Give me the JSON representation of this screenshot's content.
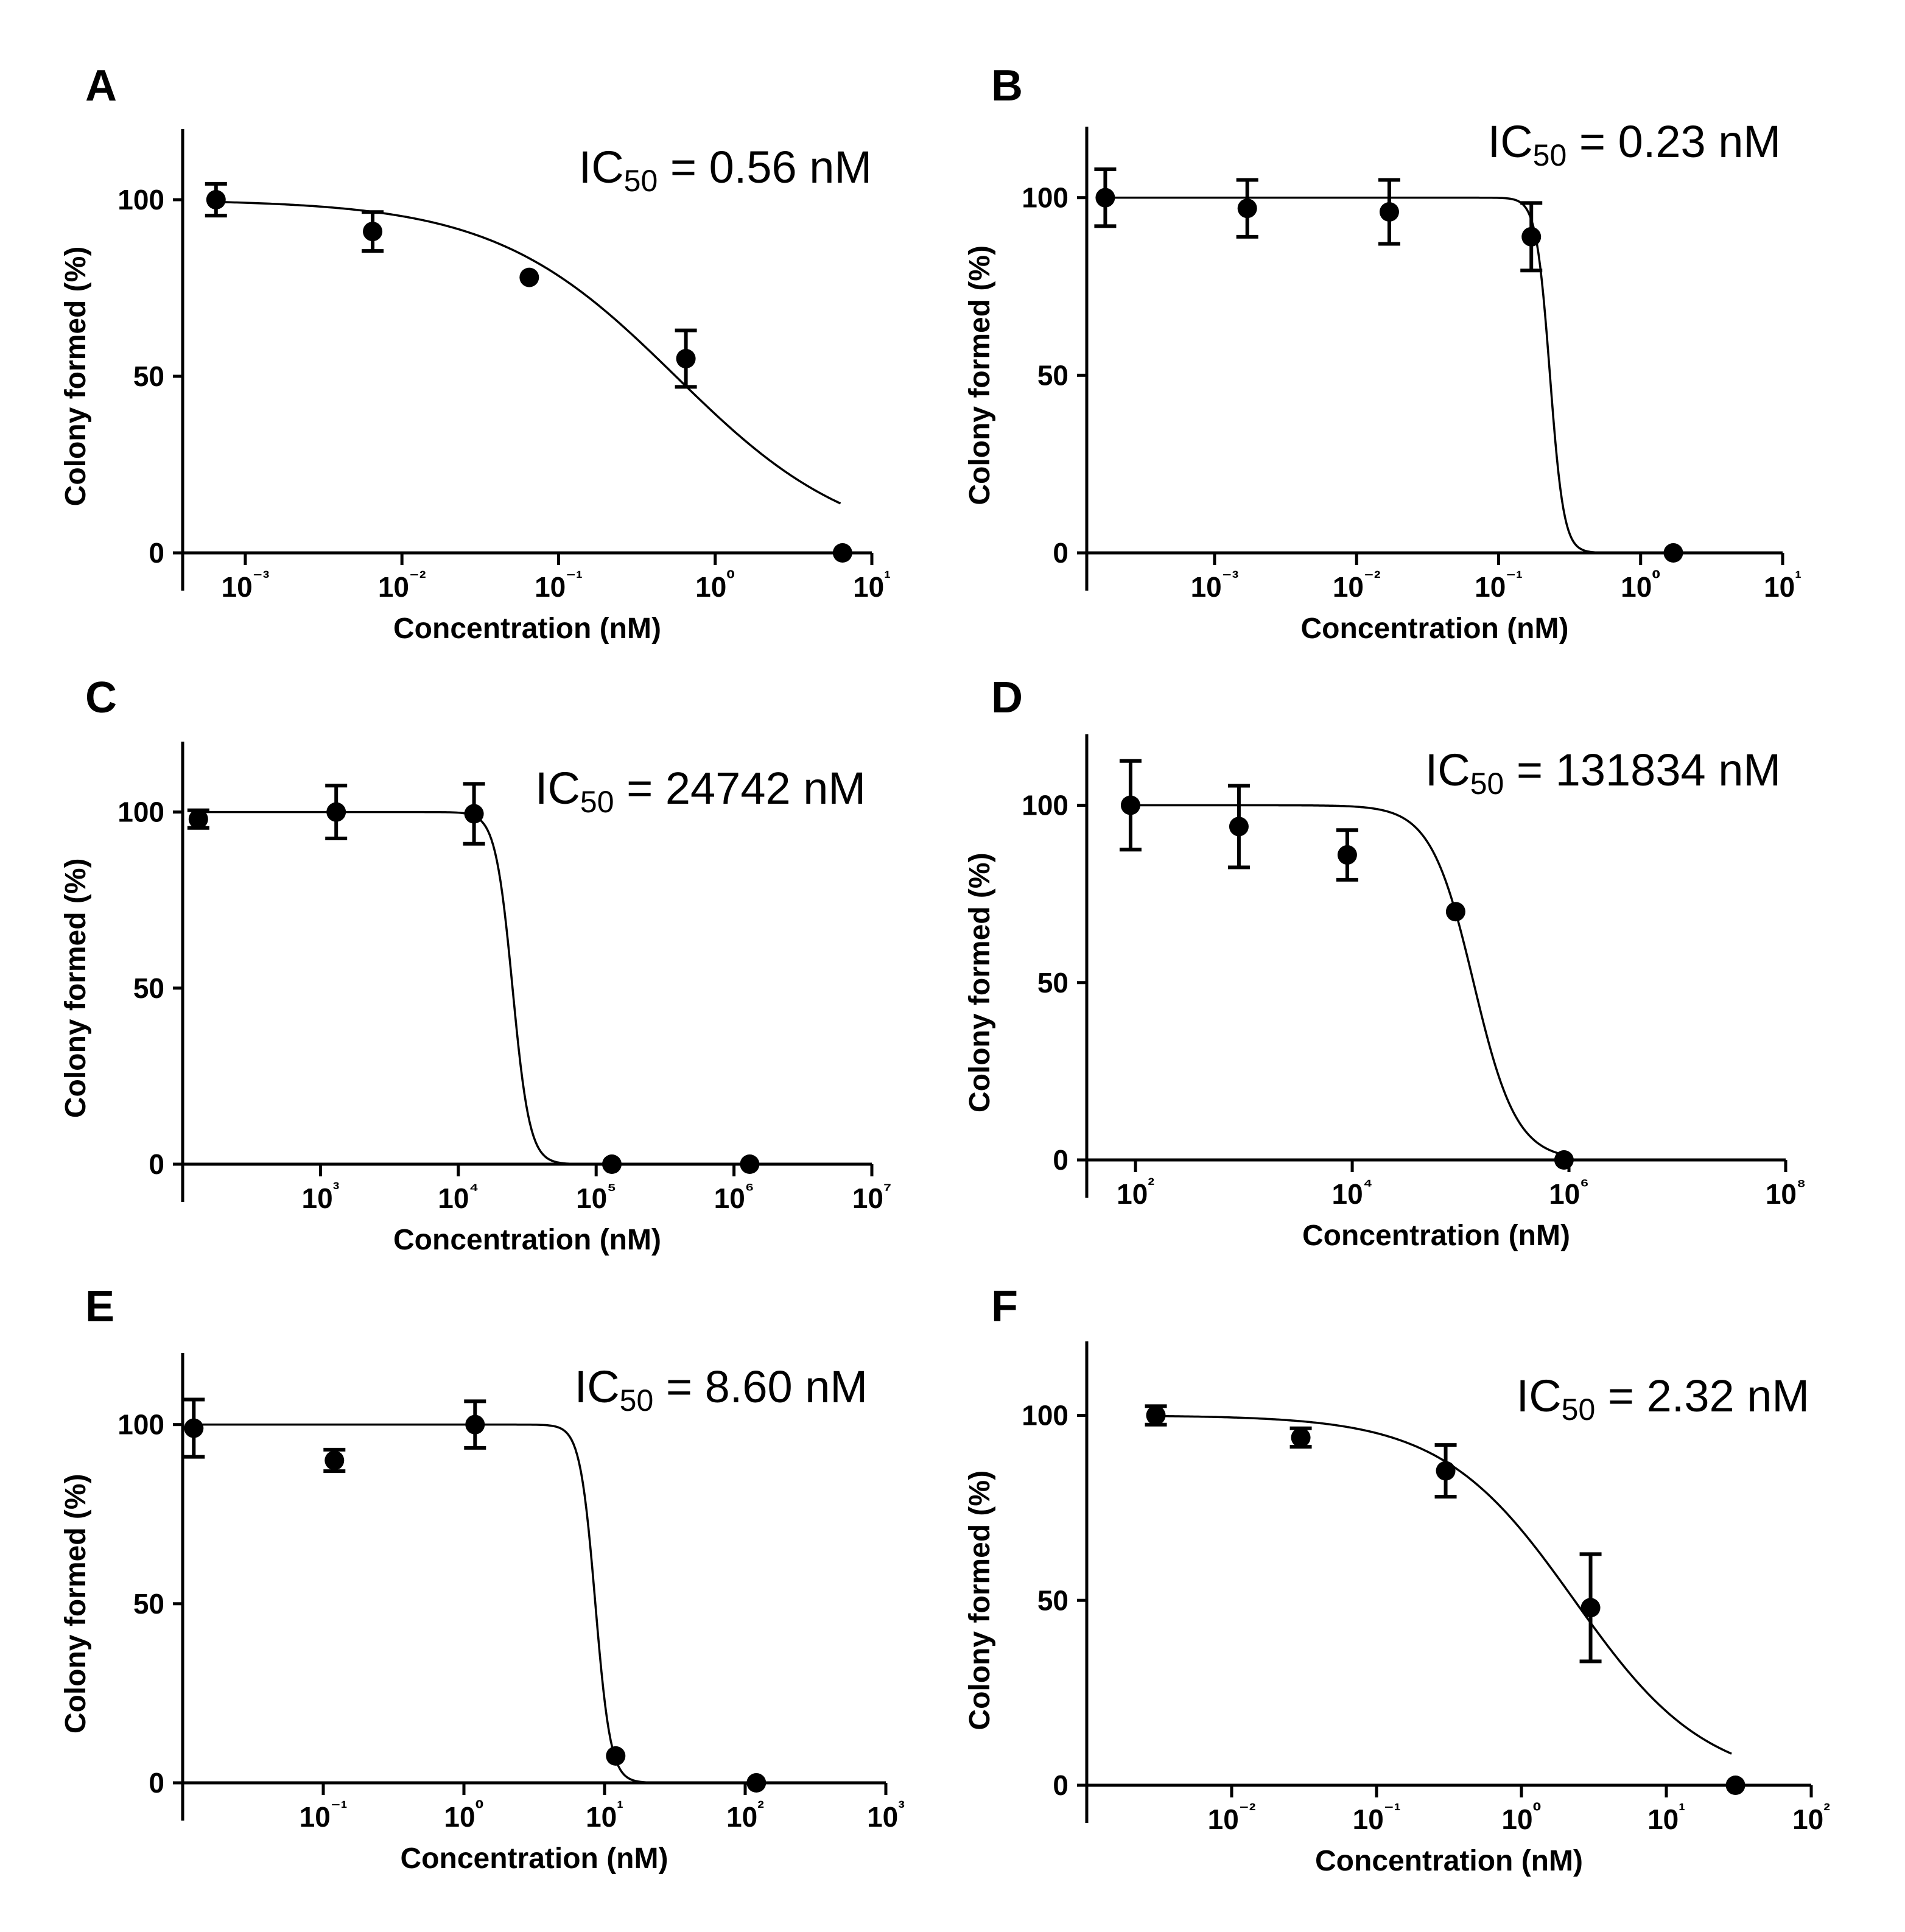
{
  "chart_data": [
    {
      "type": "scatter",
      "panel": "A",
      "ic50_label": {
        "prefix": "IC",
        "sub": "50",
        "suffix": " = 0.56 nM"
      },
      "ic50": 0.56,
      "xlabel": "Concentration (nM)",
      "ylabel": "Colony formed  (%)",
      "xscale": "log",
      "xlim_log": [
        -3.4,
        1
      ],
      "ylim": [
        0,
        120
      ],
      "yticks": [
        0,
        50,
        100
      ],
      "xtick_exponents": [
        -3,
        -2,
        -1,
        0,
        1
      ],
      "hill": -0.75,
      "curve_end_log": 0.8,
      "points": [
        {
          "x": 0.00065,
          "y": 100,
          "err": 4.5
        },
        {
          "x": 0.0065,
          "y": 91,
          "err": 5.5
        },
        {
          "x": 0.065,
          "y": 78,
          "err": 0
        },
        {
          "x": 0.65,
          "y": 55,
          "err": 8
        },
        {
          "x": 6.5,
          "y": 0,
          "err": 0
        }
      ]
    },
    {
      "type": "scatter",
      "panel": "B",
      "ic50_label": {
        "prefix": "IC",
        "sub": "50",
        "suffix": " = 0.23 nM"
      },
      "ic50": 0.23,
      "xlabel": "Concentration (nM)",
      "ylabel": "Colony formed  (%)",
      "xscale": "log",
      "xlim_log": [
        -3.9,
        1
      ],
      "ylim": [
        0,
        120
      ],
      "yticks": [
        0,
        50,
        100
      ],
      "xtick_exponents": [
        -3,
        -2,
        -1,
        0,
        1
      ],
      "hill": -9,
      "curve_end_log": -0.25,
      "points": [
        {
          "x": 0.00017,
          "y": 100,
          "err": 8
        },
        {
          "x": 0.0017,
          "y": 97,
          "err": 8
        },
        {
          "x": 0.017,
          "y": 96,
          "err": 9
        },
        {
          "x": 0.17,
          "y": 89,
          "err": 9.5
        },
        {
          "x": 1.7,
          "y": 0,
          "err": 0
        }
      ]
    },
    {
      "type": "scatter",
      "panel": "C",
      "ic50_label": {
        "prefix": "IC",
        "sub": "50",
        "suffix": " = 24742 nM"
      },
      "ic50": 24742,
      "xlabel": "Concentration (nM)",
      "ylabel": "Colony formed  (%)",
      "xscale": "log",
      "xlim_log": [
        2,
        7
      ],
      "ylim": [
        0,
        120
      ],
      "yticks": [
        0,
        50,
        100
      ],
      "xtick_exponents": [
        3,
        4,
        5,
        6,
        7
      ],
      "hill": -7,
      "curve_end_log": 6.1,
      "points": [
        {
          "x": 130,
          "y": 98,
          "err": 2.5
        },
        {
          "x": 1300,
          "y": 100,
          "err": 7.5
        },
        {
          "x": 13000,
          "y": 99.5,
          "err": 8.5
        },
        {
          "x": 130000,
          "y": 0,
          "err": 0
        },
        {
          "x": 1300000,
          "y": 0,
          "err": 0
        }
      ]
    },
    {
      "type": "scatter",
      "panel": "D",
      "ic50_label": {
        "prefix": "IC",
        "sub": "50",
        "suffix": " = 131834 nM"
      },
      "ic50": 131834,
      "xlabel": "Concentration (nM)",
      "ylabel": "Colony formed  (%)",
      "xscale": "log",
      "xlim_log": [
        1.55,
        8
      ],
      "ylim": [
        0,
        120
      ],
      "yticks": [
        0,
        50,
        100
      ],
      "xtick_exponents": [
        2,
        4,
        6,
        8
      ],
      "hill": -2.2,
      "curve_end_log": 5.95,
      "points": [
        {
          "x": 90,
          "y": 100,
          "err": 12.5
        },
        {
          "x": 900,
          "y": 94,
          "err": 11.5
        },
        {
          "x": 9000,
          "y": 86,
          "err": 7
        },
        {
          "x": 90000,
          "y": 70,
          "err": 0
        },
        {
          "x": 900000,
          "y": 0,
          "err": 0
        }
      ]
    },
    {
      "type": "scatter",
      "panel": "E",
      "ic50_label": {
        "prefix": "IC",
        "sub": "50",
        "suffix": " = 8.60 nM"
      },
      "ic50": 8.6,
      "xlabel": "Concentration (nM)",
      "ylabel": "Colony formed  (%)",
      "xscale": "log",
      "xlim_log": [
        -2,
        3
      ],
      "ylim": [
        0,
        120
      ],
      "yticks": [
        0,
        50,
        100
      ],
      "xtick_exponents": [
        -1,
        0,
        1,
        2,
        3
      ],
      "hill": -8,
      "curve_end_log": 2.05,
      "points": [
        {
          "x": 0.012,
          "y": 99,
          "err": 8
        },
        {
          "x": 0.12,
          "y": 90,
          "err": 3
        },
        {
          "x": 1.2,
          "y": 100,
          "err": 6.5
        },
        {
          "x": 12,
          "y": 7.5,
          "err": 0
        },
        {
          "x": 120,
          "y": 0,
          "err": 0
        }
      ]
    },
    {
      "type": "scatter",
      "panel": "F",
      "ic50_label": {
        "prefix": "IC",
        "sub": "50",
        "suffix": " = 2.32 nM"
      },
      "ic50": 2.32,
      "xlabel": "Concentration (nM)",
      "ylabel": "Colony formed  (%)",
      "xscale": "log",
      "xlim_log": [
        -3,
        2
      ],
      "ylim": [
        0,
        120
      ],
      "yticks": [
        0,
        50,
        100
      ],
      "xtick_exponents": [
        -2,
        -1,
        0,
        1,
        2
      ],
      "hill": -0.95,
      "curve_end_log": 1.45,
      "points": [
        {
          "x": 0.003,
          "y": 100,
          "err": 2.5
        },
        {
          "x": 0.03,
          "y": 94,
          "err": 2.5
        },
        {
          "x": 0.3,
          "y": 85,
          "err": 7
        },
        {
          "x": 3,
          "y": 48,
          "err": 14.5
        },
        {
          "x": 30,
          "y": 0,
          "err": 0
        }
      ]
    }
  ]
}
